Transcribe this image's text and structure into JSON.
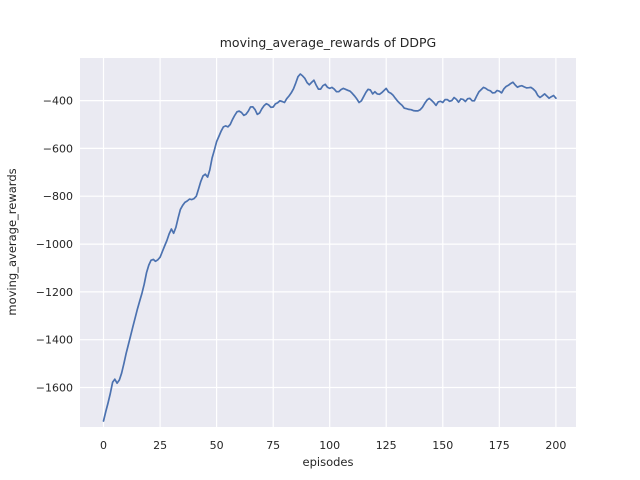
{
  "figure": {
    "background": "#ffffff"
  },
  "chart_data": {
    "type": "line",
    "title": "moving_average_rewards of DDPG",
    "xlabel": "episodes",
    "ylabel": "moving_average_rewards",
    "legend_position": "none",
    "grid": true,
    "xlim": [
      -10.4,
      208.9
    ],
    "ylim": [
      -1765,
      -222
    ],
    "x_ticks": [
      0,
      25,
      50,
      75,
      100,
      125,
      150,
      175,
      200
    ],
    "x_tick_labels": [
      "0",
      "25",
      "50",
      "75",
      "100",
      "125",
      "150",
      "175",
      "200"
    ],
    "y_ticks": [
      -400,
      -600,
      -800,
      -1000,
      -1200,
      -1400,
      -1600
    ],
    "y_tick_labels": [
      "−400",
      "−600",
      "−800",
      "−1000",
      "−1200",
      "−1400",
      "−1600"
    ],
    "style": {
      "axes_background": "#eaeaf2",
      "grid_color": "#ffffff",
      "line_color": "#4c72b0",
      "text_color": "#262626"
    },
    "series": [
      {
        "name": "moving_average_rewards",
        "color": "#4c72b0",
        "x_range": [
          0,
          200
        ],
        "x_step": 1,
        "y": [
          -1740,
          -1700,
          -1665,
          -1625,
          -1578,
          -1565,
          -1582,
          -1568,
          -1540,
          -1500,
          -1458,
          -1420,
          -1382,
          -1345,
          -1308,
          -1272,
          -1238,
          -1205,
          -1168,
          -1120,
          -1088,
          -1068,
          -1064,
          -1072,
          -1066,
          -1055,
          -1032,
          -1008,
          -985,
          -958,
          -937,
          -955,
          -930,
          -890,
          -855,
          -838,
          -826,
          -820,
          -812,
          -814,
          -810,
          -800,
          -770,
          -738,
          -715,
          -708,
          -720,
          -690,
          -640,
          -608,
          -572,
          -550,
          -528,
          -510,
          -506,
          -510,
          -500,
          -480,
          -462,
          -447,
          -444,
          -450,
          -462,
          -457,
          -444,
          -427,
          -426,
          -438,
          -458,
          -452,
          -435,
          -421,
          -413,
          -418,
          -428,
          -427,
          -414,
          -409,
          -401,
          -404,
          -408,
          -392,
          -381,
          -368,
          -351,
          -326,
          -300,
          -289,
          -297,
          -307,
          -325,
          -334,
          -324,
          -315,
          -335,
          -352,
          -352,
          -338,
          -332,
          -344,
          -349,
          -345,
          -352,
          -363,
          -363,
          -354,
          -349,
          -353,
          -357,
          -361,
          -370,
          -381,
          -393,
          -408,
          -401,
          -384,
          -366,
          -353,
          -356,
          -372,
          -363,
          -372,
          -374,
          -367,
          -358,
          -349,
          -364,
          -369,
          -377,
          -390,
          -402,
          -412,
          -420,
          -432,
          -434,
          -437,
          -438,
          -442,
          -443,
          -443,
          -438,
          -428,
          -412,
          -398,
          -391,
          -399,
          -408,
          -420,
          -405,
          -403,
          -408,
          -396,
          -396,
          -403,
          -400,
          -387,
          -395,
          -407,
          -393,
          -395,
          -404,
          -392,
          -391,
          -401,
          -401,
          -381,
          -363,
          -354,
          -345,
          -349,
          -356,
          -359,
          -368,
          -367,
          -358,
          -361,
          -368,
          -351,
          -341,
          -336,
          -329,
          -323,
          -335,
          -344,
          -340,
          -338,
          -343,
          -347,
          -346,
          -345,
          -352,
          -361,
          -379,
          -387,
          -380,
          -372,
          -381,
          -390,
          -384,
          -379,
          -390
        ]
      }
    ]
  }
}
